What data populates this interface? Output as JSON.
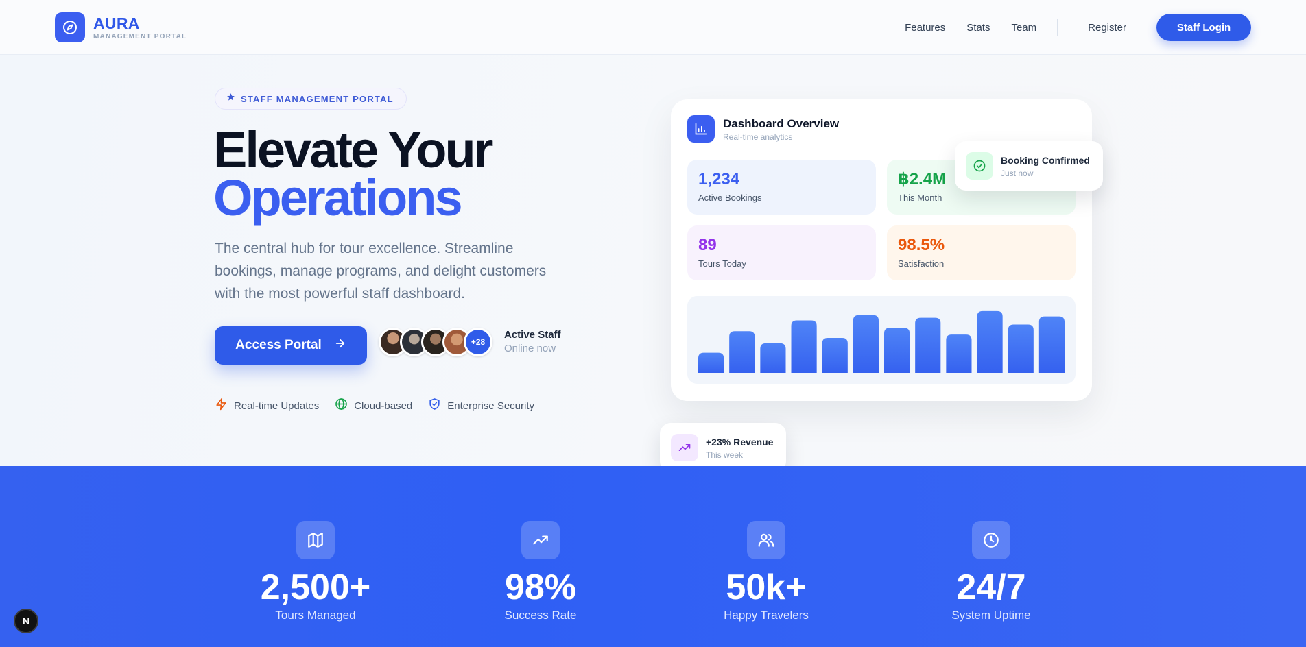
{
  "nav": {
    "brand_name": "AURA",
    "brand_sub": "MANAGEMENT PORTAL",
    "links": [
      "Features",
      "Stats",
      "Team"
    ],
    "register": "Register",
    "staff_login": "Staff Login"
  },
  "hero": {
    "badge": "STAFF MANAGEMENT PORTAL",
    "title_line1": "Elevate Your",
    "title_line2": "Operations",
    "lead": "The central hub for tour excellence. Streamline bookings, manage programs, and delight customers with the most powerful staff dashboard.",
    "cta": "Access Portal",
    "avatars_more": "+28",
    "staff_title": "Active Staff",
    "staff_sub": "Online now",
    "features": [
      "Real-time Updates",
      "Cloud-based",
      "Enterprise Security"
    ]
  },
  "dashboard": {
    "title": "Dashboard Overview",
    "subtitle": "Real-time analytics",
    "stats": [
      {
        "value": "1,234",
        "label": "Active Bookings",
        "color": "#3b5ef0",
        "bg": "#eef3fd"
      },
      {
        "value": "฿2.4M",
        "label": "This Month",
        "color": "#16a34a",
        "bg": "#eefbf3"
      },
      {
        "value": "89",
        "label": "Tours Today",
        "color": "#9333ea",
        "bg": "#f8f2fd"
      },
      {
        "value": "98.5%",
        "label": "Satisfaction",
        "color": "#ea580c",
        "bg": "#fff6ec"
      }
    ],
    "confirm_title": "Booking Confirmed",
    "confirm_sub": "Just now",
    "revenue_title": "+23% Revenue",
    "revenue_sub": "This week"
  },
  "chart_data": {
    "type": "bar",
    "values": [
      30,
      62,
      44,
      78,
      52,
      86,
      67,
      82,
      57,
      92,
      72,
      84
    ],
    "ylim": [
      0,
      100
    ]
  },
  "stats_band": [
    {
      "icon": "map-icon",
      "value": "2,500+",
      "label": "Tours Managed"
    },
    {
      "icon": "trending-up-icon",
      "value": "98%",
      "label": "Success Rate"
    },
    {
      "icon": "users-icon",
      "value": "50k+",
      "label": "Happy Travelers"
    },
    {
      "icon": "clock-icon",
      "value": "24/7",
      "label": "System Uptime"
    }
  ],
  "colors": {
    "accent": "#2f5be9",
    "dark": "#0b1222"
  },
  "dev_badge": "N"
}
